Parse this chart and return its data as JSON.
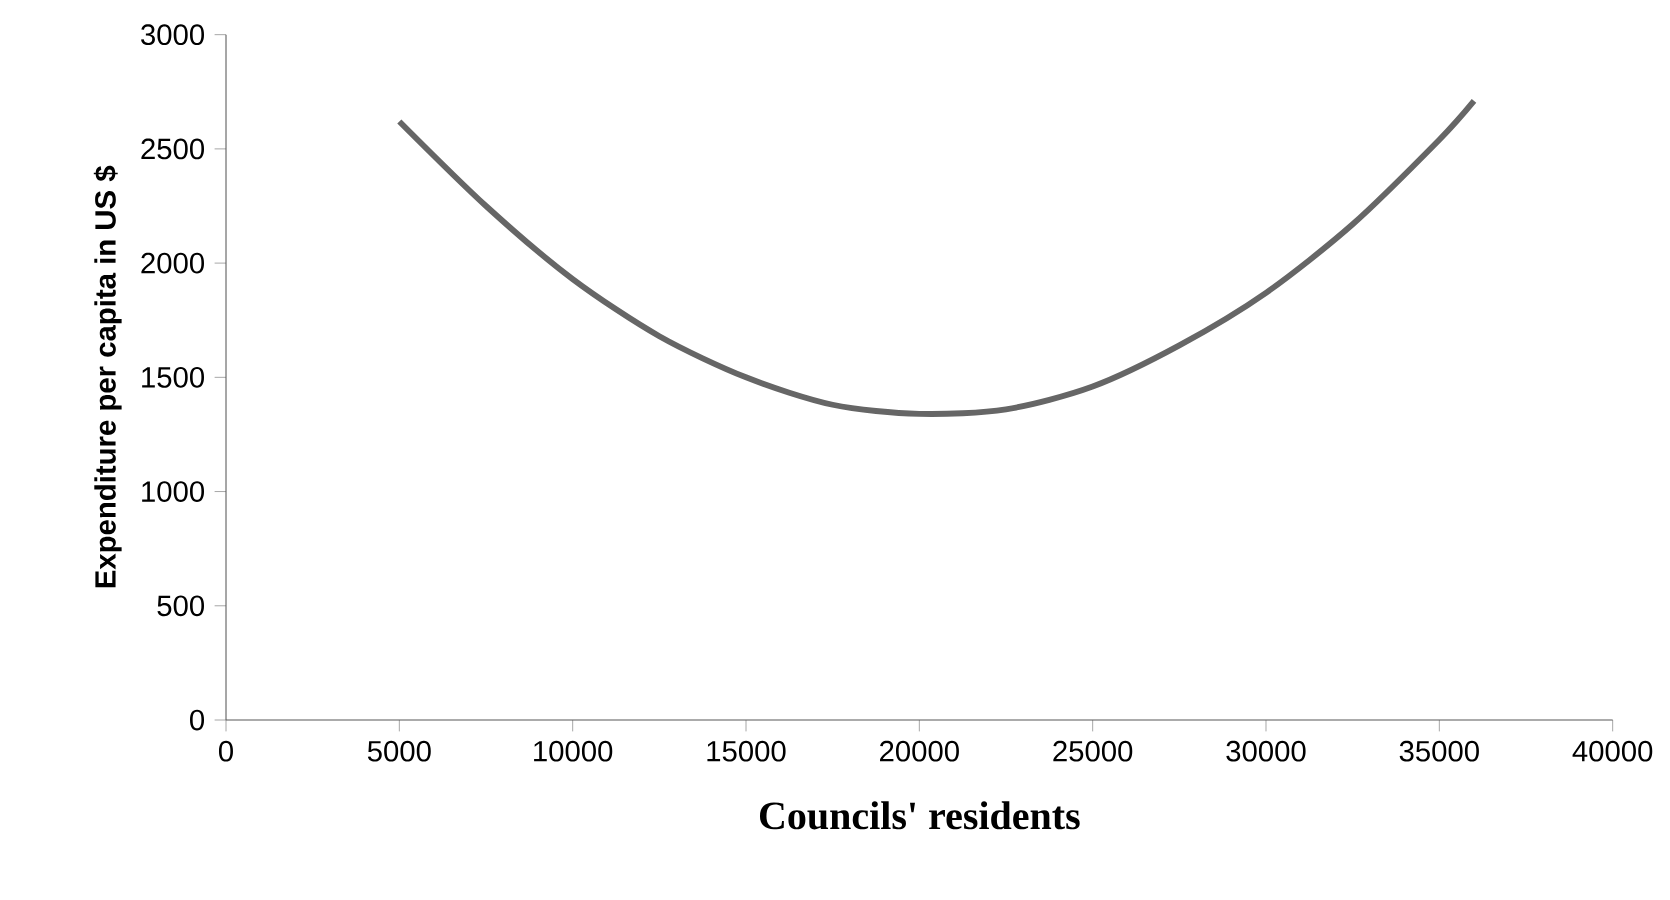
{
  "chart_data": {
    "type": "line",
    "xlabel": "Councils' residents",
    "ylabel": "Expenditure per capita in US $",
    "x": [
      5000,
      7500,
      10000,
      12500,
      15000,
      17500,
      20000,
      22500,
      25000,
      27500,
      30000,
      32500,
      35000,
      36000
    ],
    "series": [
      {
        "color": "#666666",
        "values": [
          2620,
          2250,
          1930,
          1680,
          1500,
          1380,
          1340,
          1360,
          1460,
          1640,
          1870,
          2170,
          2540,
          2710
        ]
      }
    ],
    "xlim": [
      0,
      40000
    ],
    "xticks": [
      0,
      5000,
      10000,
      15000,
      20000,
      25000,
      30000,
      35000,
      40000
    ],
    "ylim": [
      0,
      3000
    ],
    "yticks": [
      0,
      500,
      1000,
      1500,
      2000,
      2500,
      3000
    ],
    "grid": false,
    "marker": "none",
    "line_style": "solid"
  }
}
